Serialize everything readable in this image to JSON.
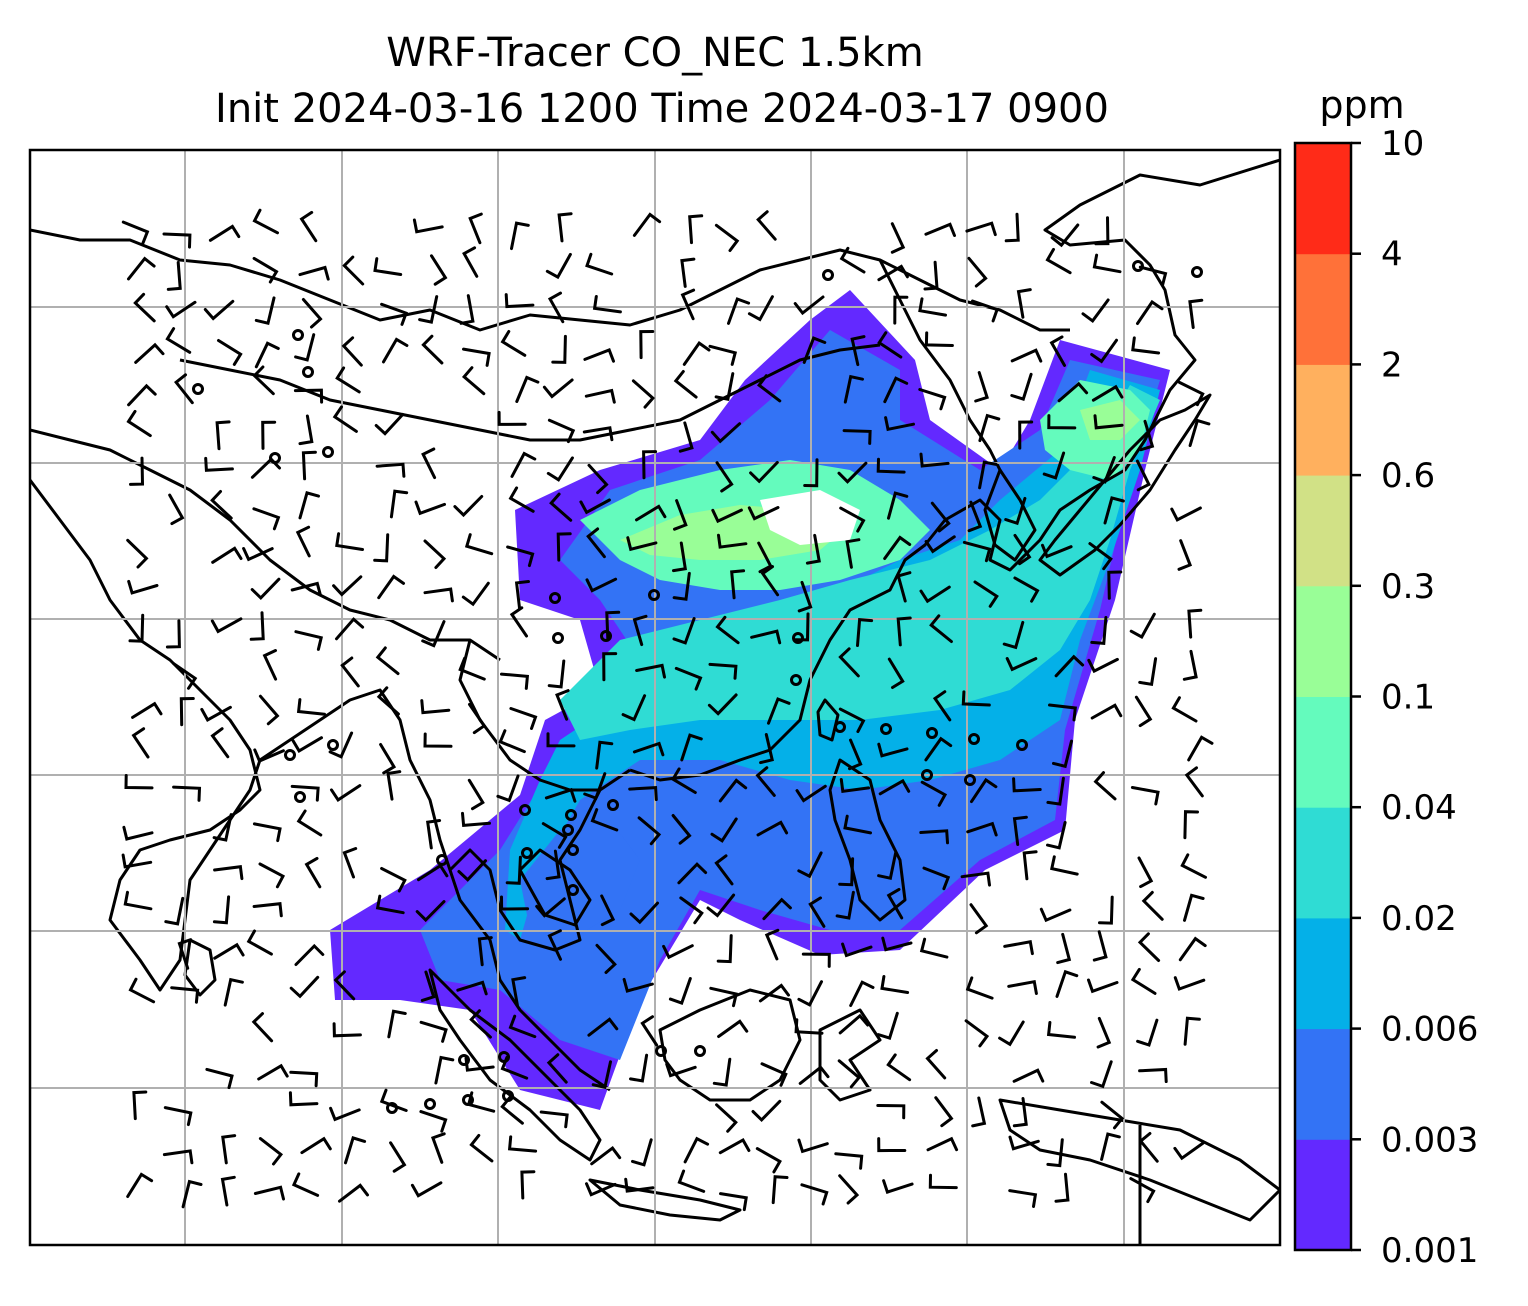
{
  "title": {
    "line1": "WRF-Tracer CO_NEC 1.5km",
    "line2": "Init 2024-03-16 1200 Time 2024-03-17 0900"
  },
  "colorbar": {
    "unit": "ppm",
    "ticks": [
      "0.001",
      "0.003",
      "0.006",
      "0.02",
      "0.04",
      "0.1",
      "0.3",
      "0.6",
      "2",
      "4",
      "10"
    ],
    "colors": [
      "#6329ff",
      "#3373f5",
      "#04b0e8",
      "#2fdcd4",
      "#64fbbd",
      "#99fe97",
      "#d1e186",
      "#ffb05e",
      "#ff7139",
      "#ff2b18"
    ]
  },
  "map": {
    "gridlines": true,
    "field": "CO_NEC",
    "level": "1.5km",
    "overlays": [
      "coastlines",
      "borders",
      "wind-barbs"
    ]
  }
}
